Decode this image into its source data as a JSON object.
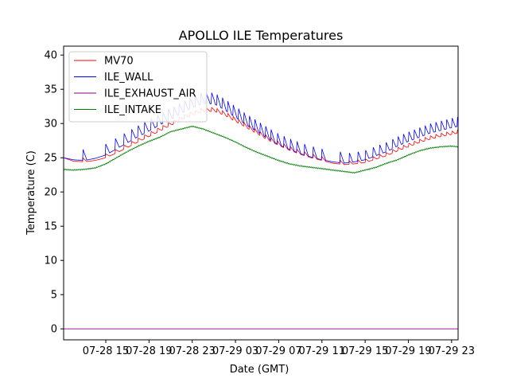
{
  "chart_data": {
    "type": "line",
    "title": "APOLLO ILE Temperatures",
    "xlabel": "Date (GMT)",
    "ylabel": "Temperature (C)",
    "xlim": [
      11.1,
      47.6
    ],
    "ylim": [
      -1.6,
      41.3
    ],
    "x_units": "hours since 07-28 00:00 GMT",
    "grid": false,
    "legend_position": "top-left",
    "x_ticks": [
      {
        "value": 15,
        "label": "07-28 15"
      },
      {
        "value": 19,
        "label": "07-28 19"
      },
      {
        "value": 23,
        "label": "07-28 23"
      },
      {
        "value": 27,
        "label": "07-29 03"
      },
      {
        "value": 31,
        "label": "07-29 07"
      },
      {
        "value": 35,
        "label": "07-29 11"
      },
      {
        "value": 39,
        "label": "07-29 15"
      },
      {
        "value": 43,
        "label": "07-29 19"
      },
      {
        "value": 47,
        "label": "07-29 23"
      }
    ],
    "y_ticks": [
      {
        "value": 0,
        "label": "0"
      },
      {
        "value": 5,
        "label": "5"
      },
      {
        "value": 10,
        "label": "10"
      },
      {
        "value": 15,
        "label": "15"
      },
      {
        "value": 20,
        "label": "20"
      },
      {
        "value": 25,
        "label": "25"
      },
      {
        "value": 30,
        "label": "30"
      },
      {
        "value": 35,
        "label": "35"
      },
      {
        "value": 40,
        "label": "40"
      }
    ],
    "series": [
      {
        "name": "MV70",
        "color": "#ff0000",
        "x": [
          11.1,
          12.0,
          13.0,
          14.0,
          15.0,
          16.0,
          17.0,
          18.0,
          19.0,
          20.0,
          21.0,
          22.0,
          23.0,
          24.0,
          25.0,
          26.0,
          27.0,
          28.0,
          29.0,
          30.0,
          31.0,
          32.0,
          33.0,
          34.0,
          35.0,
          36.0,
          37.0,
          38.0,
          39.0,
          40.0,
          41.0,
          42.0,
          43.0,
          44.0,
          45.0,
          46.0,
          47.0,
          47.6
        ],
        "values": [
          25.0,
          24.5,
          24.4,
          24.6,
          25.0,
          25.7,
          26.5,
          27.3,
          28.1,
          28.9,
          29.7,
          30.5,
          31.2,
          31.7,
          31.8,
          31.2,
          30.3,
          29.4,
          28.5,
          27.6,
          26.8,
          26.1,
          25.5,
          25.0,
          24.6,
          24.2,
          24.0,
          24.1,
          24.3,
          24.8,
          25.3,
          26.0,
          26.6,
          27.2,
          27.7,
          28.1,
          28.4,
          28.6
        ]
      },
      {
        "name": "ILE_WALL",
        "color": "#0000ff",
        "x": [
          11.1,
          12.0,
          13.0,
          14.0,
          15.0,
          16.0,
          17.0,
          18.0,
          19.0,
          20.0,
          21.0,
          22.0,
          23.0,
          24.0,
          25.0,
          26.0,
          27.0,
          28.0,
          29.0,
          30.0,
          31.0,
          32.0,
          33.0,
          34.0,
          35.0,
          36.0,
          37.0,
          38.0,
          39.0,
          40.0,
          41.0,
          42.0,
          43.0,
          44.0,
          45.0,
          46.0,
          47.0,
          47.6
        ],
        "values": [
          25.0,
          24.7,
          24.6,
          24.9,
          25.4,
          26.3,
          27.2,
          28.1,
          28.9,
          29.8,
          30.6,
          31.5,
          32.3,
          32.9,
          32.9,
          32.0,
          30.9,
          29.8,
          28.8,
          27.8,
          26.9,
          26.2,
          25.6,
          25.1,
          24.7,
          24.4,
          24.2,
          24.4,
          24.7,
          25.3,
          25.9,
          26.7,
          27.4,
          28.0,
          28.6,
          29.0,
          29.4,
          29.6
        ]
      },
      {
        "name": "ILE_EXHAUST_AIR",
        "color": "#800080",
        "x": [
          11.1,
          47.6
        ],
        "values": [
          0.0,
          0.0
        ]
      },
      {
        "name": "ILE_INTAKE",
        "color": "#008000",
        "x": [
          11.1,
          12.0,
          13.0,
          14.0,
          15.0,
          16.0,
          17.0,
          18.0,
          19.0,
          20.0,
          21.0,
          22.0,
          23.0,
          24.0,
          25.0,
          26.0,
          27.0,
          28.0,
          29.0,
          30.0,
          31.0,
          32.0,
          33.0,
          34.0,
          35.0,
          36.0,
          37.0,
          38.0,
          39.0,
          40.0,
          41.0,
          42.0,
          43.0,
          44.0,
          45.0,
          46.0,
          47.0,
          47.6
        ],
        "values": [
          23.3,
          23.2,
          23.3,
          23.5,
          24.1,
          25.0,
          25.9,
          26.7,
          27.4,
          28.0,
          28.8,
          29.2,
          29.6,
          29.2,
          28.6,
          28.0,
          27.3,
          26.5,
          25.8,
          25.2,
          24.6,
          24.1,
          23.8,
          23.6,
          23.4,
          23.2,
          23.0,
          22.8,
          23.2,
          23.6,
          24.2,
          24.7,
          25.4,
          26.0,
          26.4,
          26.6,
          26.7,
          26.6
        ]
      }
    ],
    "wall_spikes": {
      "series": "ILE_WALL",
      "x": [
        12.9,
        15.0,
        15.9,
        16.7,
        17.4,
        18.0,
        18.6,
        19.2,
        19.8,
        20.3,
        20.8,
        21.3,
        21.8,
        22.3,
        22.8,
        23.3,
        23.8,
        24.3,
        24.8,
        25.3,
        25.8,
        26.3,
        26.8,
        27.3,
        27.8,
        28.3,
        28.8,
        29.3,
        29.8,
        30.3,
        30.9,
        31.5,
        32.1,
        32.7,
        33.4,
        34.2,
        35.0,
        36.7,
        37.5,
        38.3,
        39.0,
        39.7,
        40.3,
        40.9,
        41.5,
        42.0,
        42.5,
        43.0,
        43.5,
        44.0,
        44.5,
        45.0,
        45.5,
        46.0,
        46.5,
        47.0,
        47.5
      ],
      "height": 1.6
    }
  }
}
